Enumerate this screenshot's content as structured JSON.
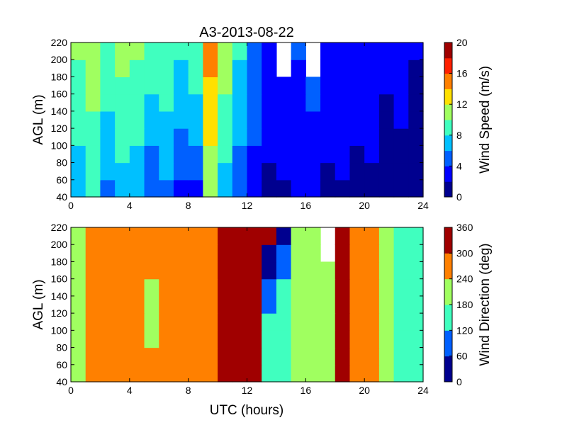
{
  "colormap": [
    "#00008f",
    "#0000ff",
    "#0060ff",
    "#00c0ff",
    "#40ffbf",
    "#a0ff60",
    "#ffe000",
    "#ff8000",
    "#ff2000",
    "#a00000"
  ],
  "chart_data": [
    {
      "type": "heatmap",
      "title": "A3-2013-08-22",
      "xlabel": "",
      "ylabel": "AGL (m)",
      "colorbar_label": "Wind Speed (m/s)",
      "xlim": [
        0,
        24
      ],
      "ylim": [
        40,
        220
      ],
      "xticks": [
        0,
        4,
        8,
        12,
        16,
        20,
        24
      ],
      "yticks": [
        40,
        60,
        80,
        100,
        120,
        140,
        160,
        180,
        200,
        220
      ],
      "clim": [
        0,
        20
      ],
      "cticks": [
        0,
        4,
        8,
        12,
        16,
        20
      ],
      "levels": 10,
      "x": [
        0,
        1,
        2,
        3,
        4,
        5,
        6,
        7,
        8,
        9,
        10,
        11,
        12,
        13,
        14,
        15,
        16,
        17,
        18,
        19,
        20,
        21,
        22,
        23
      ],
      "y": [
        50,
        70,
        90,
        110,
        130,
        150,
        170,
        190,
        210
      ],
      "z": [
        [
          6,
          8,
          5,
          7,
          6,
          4,
          5,
          3,
          3,
          10,
          7,
          4,
          3,
          1,
          1,
          2,
          3,
          1,
          1,
          1,
          1,
          1,
          1,
          1
        ],
        [
          7,
          8,
          6,
          7,
          7,
          5,
          6,
          4,
          4,
          11,
          7,
          5,
          3,
          1,
          2,
          2,
          3,
          1,
          2,
          1,
          1,
          1,
          1,
          1
        ],
        [
          7,
          9,
          6,
          8,
          7,
          5,
          6,
          4,
          5,
          11,
          8,
          5,
          3,
          2,
          2,
          3,
          3,
          2,
          2,
          1,
          2,
          1,
          1,
          1
        ],
        [
          8,
          9,
          7,
          8,
          8,
          6,
          7,
          5,
          6,
          12,
          8,
          6,
          4,
          2,
          2,
          3,
          3,
          2,
          2,
          2,
          2,
          1,
          1,
          1
        ],
        [
          8,
          9,
          7,
          9,
          8,
          7,
          7,
          6,
          7,
          12,
          9,
          6,
          4,
          2,
          2,
          3,
          3,
          2,
          2,
          2,
          2,
          1,
          2,
          1
        ],
        [
          9,
          10,
          8,
          9,
          9,
          7,
          8,
          6,
          7,
          13,
          9,
          7,
          4,
          2,
          3,
          3,
          4,
          3,
          2,
          2,
          2,
          1,
          2,
          1
        ],
        [
          9,
          10,
          8,
          9,
          9,
          8,
          8,
          7,
          8,
          13,
          10,
          7,
          4,
          2,
          3,
          3,
          4,
          3,
          2,
          2,
          2,
          2,
          2,
          1
        ],
        [
          9,
          10,
          9,
          10,
          9,
          8,
          9,
          7,
          8,
          14,
          10,
          7,
          5,
          2,
          null,
          3,
          null,
          3,
          2,
          2,
          2,
          2,
          2,
          1
        ],
        [
          10,
          10,
          9,
          10,
          10,
          9,
          9,
          8,
          9,
          14,
          10,
          8,
          5,
          2,
          null,
          4,
          null,
          3,
          2,
          2,
          2,
          2,
          2,
          2
        ]
      ]
    },
    {
      "type": "heatmap",
      "title": "",
      "xlabel": "UTC (hours)",
      "ylabel": "AGL (m)",
      "colorbar_label": "Wind Direction (deg)",
      "xlim": [
        0,
        24
      ],
      "ylim": [
        40,
        220
      ],
      "xticks": [
        0,
        4,
        8,
        12,
        16,
        20,
        24
      ],
      "yticks": [
        40,
        60,
        80,
        100,
        120,
        140,
        160,
        180,
        200,
        220
      ],
      "clim": [
        0,
        360
      ],
      "cticks": [
        0,
        60,
        120,
        180,
        240,
        300,
        360
      ],
      "levels": 6,
      "x": [
        0,
        1,
        2,
        3,
        4,
        5,
        6,
        7,
        8,
        9,
        10,
        11,
        12,
        13,
        14,
        15,
        16,
        17,
        18,
        19,
        20,
        21,
        22,
        23
      ],
      "y": [
        50,
        70,
        90,
        110,
        130,
        150,
        170,
        190,
        210
      ],
      "z": [
        [
          230,
          260,
          270,
          270,
          240,
          250,
          270,
          270,
          270,
          270,
          330,
          330,
          330,
          130,
          160,
          190,
          220,
          220,
          300,
          260,
          250,
          190,
          130,
          170
        ],
        [
          230,
          260,
          270,
          270,
          240,
          250,
          270,
          270,
          270,
          270,
          330,
          330,
          330,
          140,
          160,
          190,
          220,
          220,
          300,
          260,
          250,
          190,
          130,
          170
        ],
        [
          230,
          260,
          270,
          270,
          250,
          230,
          270,
          270,
          270,
          270,
          330,
          330,
          330,
          130,
          160,
          190,
          220,
          220,
          300,
          270,
          250,
          190,
          130,
          170
        ],
        [
          230,
          260,
          270,
          270,
          260,
          230,
          270,
          270,
          270,
          270,
          330,
          330,
          330,
          120,
          160,
          190,
          220,
          220,
          300,
          260,
          250,
          190,
          130,
          170
        ],
        [
          230,
          260,
          270,
          270,
          270,
          230,
          270,
          270,
          270,
          270,
          330,
          330,
          330,
          90,
          160,
          190,
          220,
          220,
          300,
          260,
          250,
          190,
          130,
          170
        ],
        [
          230,
          260,
          270,
          270,
          270,
          230,
          270,
          270,
          270,
          270,
          330,
          330,
          330,
          60,
          140,
          190,
          220,
          220,
          300,
          260,
          250,
          190,
          130,
          170
        ],
        [
          230,
          260,
          270,
          270,
          270,
          240,
          270,
          270,
          270,
          270,
          330,
          330,
          330,
          40,
          60,
          190,
          220,
          220,
          300,
          260,
          250,
          190,
          130,
          170
        ],
        [
          230,
          260,
          270,
          270,
          270,
          240,
          270,
          270,
          270,
          270,
          330,
          330,
          330,
          40,
          60,
          190,
          220,
          null,
          300,
          260,
          250,
          190,
          130,
          170
        ],
        [
          230,
          260,
          270,
          270,
          270,
          250,
          270,
          270,
          270,
          270,
          330,
          330,
          330,
          300,
          40,
          190,
          220,
          null,
          300,
          260,
          250,
          190,
          130,
          170
        ]
      ]
    }
  ]
}
